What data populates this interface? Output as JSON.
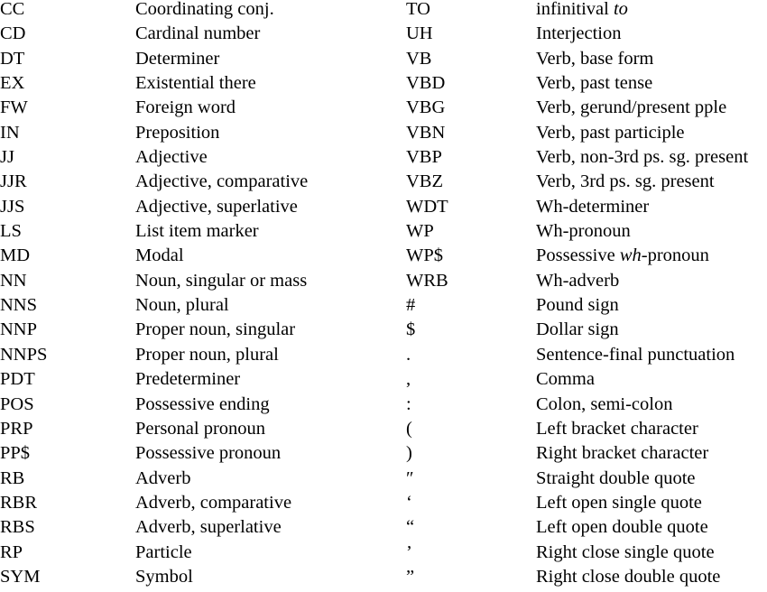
{
  "tags": {
    "rows": [
      {
        "left_tag": "CC",
        "left_desc": "Coordinating conj.",
        "right_tag": "TO",
        "right_desc": [
          "infinitival ",
          {
            "i": "to"
          }
        ]
      },
      {
        "left_tag": "CD",
        "left_desc": "Cardinal number",
        "right_tag": "UH",
        "right_desc": "Interjection"
      },
      {
        "left_tag": "DT",
        "left_desc": "Determiner",
        "right_tag": "VB",
        "right_desc": "Verb, base form"
      },
      {
        "left_tag": "EX",
        "left_desc": "Existential there",
        "right_tag": "VBD",
        "right_desc": "Verb, past tense"
      },
      {
        "left_tag": "FW",
        "left_desc": "Foreign word",
        "right_tag": "VBG",
        "right_desc": "Verb, gerund/present pple"
      },
      {
        "left_tag": "IN",
        "left_desc": "Preposition",
        "right_tag": "VBN",
        "right_desc": "Verb, past participle"
      },
      {
        "left_tag": "JJ",
        "left_desc": "Adjective",
        "right_tag": "VBP",
        "right_desc": "Verb, non-3rd ps. sg. present"
      },
      {
        "left_tag": "JJR",
        "left_desc": "Adjective, comparative",
        "right_tag": "VBZ",
        "right_desc": "Verb, 3rd ps. sg. present"
      },
      {
        "left_tag": "JJS",
        "left_desc": "Adjective, superlative",
        "right_tag": "WDT",
        "right_desc": "Wh-determiner"
      },
      {
        "left_tag": "LS",
        "left_desc": "List item marker",
        "right_tag": "WP",
        "right_desc": "Wh-pronoun"
      },
      {
        "left_tag": "MD",
        "left_desc": "Modal",
        "right_tag": "WP$",
        "right_desc": [
          "Possessive ",
          {
            "i": "wh"
          },
          "-pronoun"
        ]
      },
      {
        "left_tag": "NN",
        "left_desc": "Noun, singular or mass",
        "right_tag": "WRB",
        "right_desc": "Wh-adverb"
      },
      {
        "left_tag": "NNS",
        "left_desc": "Noun, plural",
        "right_tag": "#",
        "right_desc": "Pound sign"
      },
      {
        "left_tag": "NNP",
        "left_desc": "Proper noun, singular",
        "right_tag": "$",
        "right_desc": "Dollar sign"
      },
      {
        "left_tag": "NNPS",
        "left_desc": "Proper noun, plural",
        "right_tag": ".",
        "right_desc": "Sentence-final punctuation"
      },
      {
        "left_tag": "PDT",
        "left_desc": "Predeterminer",
        "right_tag": ",",
        "right_desc": "Comma"
      },
      {
        "left_tag": "POS",
        "left_desc": "Possessive ending",
        "right_tag": ":",
        "right_desc": "Colon, semi-colon"
      },
      {
        "left_tag": "PRP",
        "left_desc": "Personal pronoun",
        "right_tag": "(",
        "right_desc": "Left bracket character"
      },
      {
        "left_tag": "PP$",
        "left_desc": "Possessive pronoun",
        "right_tag": ")",
        "right_desc": "Right bracket character"
      },
      {
        "left_tag": "RB",
        "left_desc": "Adverb",
        "right_tag": "″",
        "right_desc": "Straight double quote"
      },
      {
        "left_tag": "RBR",
        "left_desc": "Adverb, comparative",
        "right_tag": "‘",
        "right_desc": "Left open single quote"
      },
      {
        "left_tag": "RBS",
        "left_desc": "Adverb, superlative",
        "right_tag": "“",
        "right_desc": "Left open double quote"
      },
      {
        "left_tag": "RP",
        "left_desc": "Particle",
        "right_tag": "’",
        "right_desc": "Right close single quote"
      },
      {
        "left_tag": "SYM",
        "left_desc": "Symbol",
        "right_tag": "”",
        "right_desc": "Right close double quote"
      }
    ]
  }
}
